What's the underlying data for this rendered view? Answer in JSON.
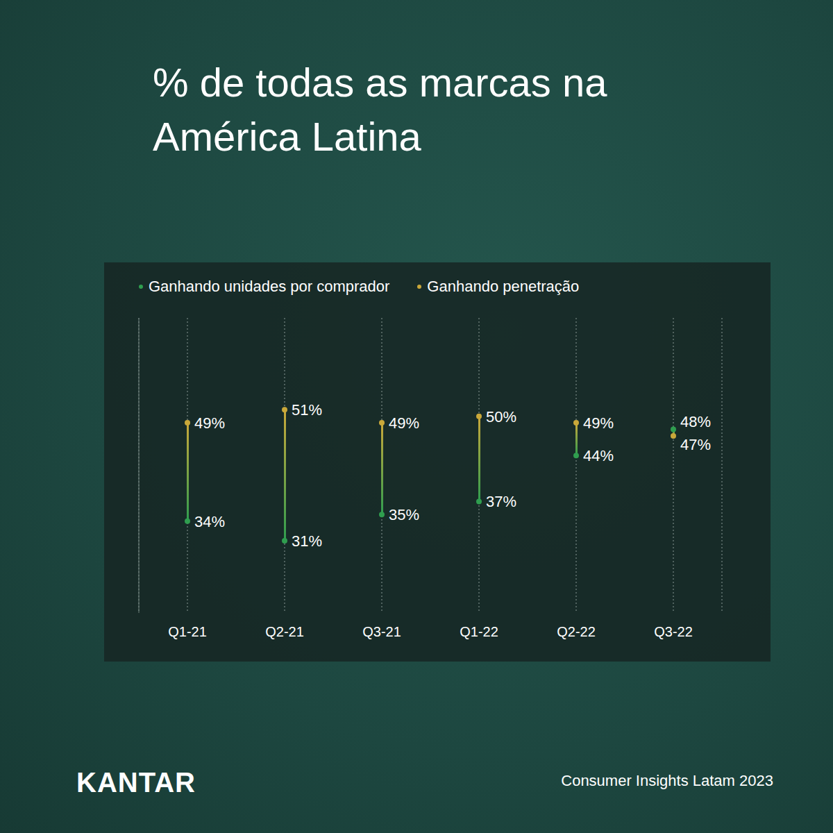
{
  "chart_data": {
    "type": "dumbbell",
    "title": "% de todas as marcas na América Latina",
    "categories": [
      "Q1-21",
      "Q2-21",
      "Q3-21",
      "Q1-22",
      "Q2-22",
      "Q3-22"
    ],
    "series": [
      {
        "name": "Ganhando unidades por comprador",
        "color": "#2f9e4f",
        "values": [
          34,
          31,
          35,
          37,
          44,
          48
        ],
        "value_labels": [
          "34%",
          "31%",
          "35%",
          "37%",
          "44%",
          "48%"
        ]
      },
      {
        "name": "Ganhando penetração",
        "color": "#c9a83a",
        "values": [
          49,
          51,
          49,
          50,
          49,
          47
        ],
        "value_labels": [
          "49%",
          "51%",
          "49%",
          "50%",
          "49%",
          "47%"
        ]
      }
    ],
    "ylim": [
      20,
      65
    ],
    "grid": true,
    "legend": "top",
    "data_labels": true,
    "tick_labels": "x",
    "annotations": [
      "KANTAR",
      "Consumer Insights Latam 2023"
    ]
  }
}
